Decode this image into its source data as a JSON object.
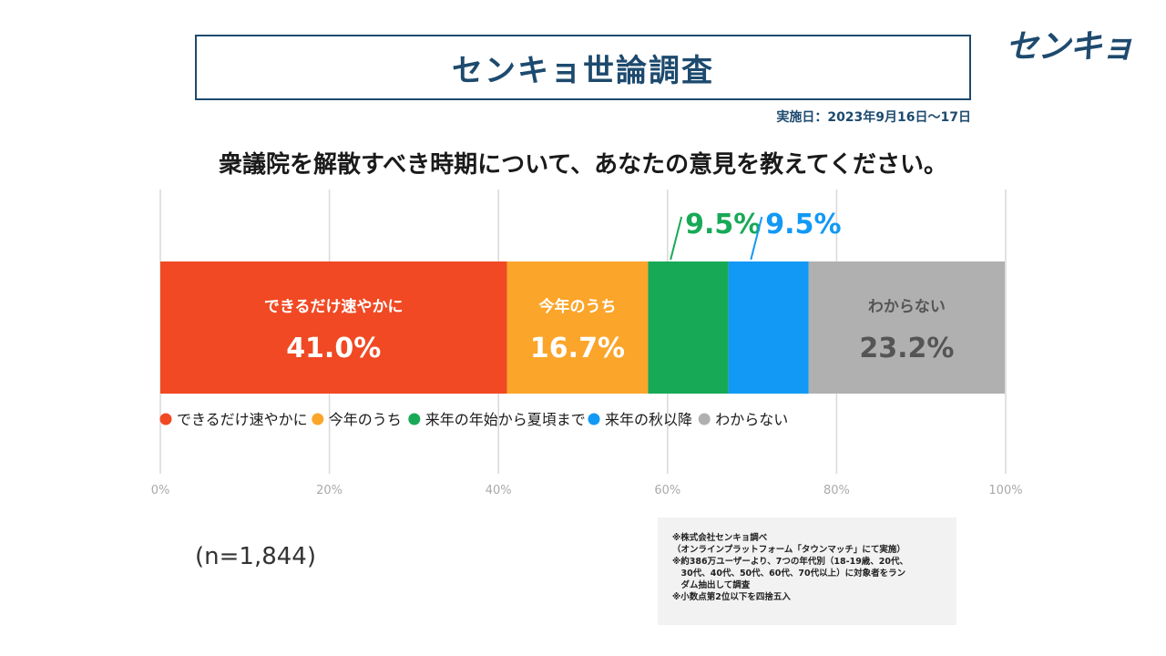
{
  "header": {
    "title": "センキョ世論調査",
    "logo_text": "センキョ",
    "date": "実施日：2023年9月16日～17日"
  },
  "question": "衆議院を解散すべき時期について、あなたの意見を教えてください。",
  "sample_size": "(n=1,844)",
  "notes": [
    "※株式会社センキョ調べ",
    "（オンラインプラットフォーム「タウンマッチ」にて実施）",
    "※約386万ユーザーより、7つの年代別（18-19歳、20代、",
    "　30代、40代、50代、60代、70代以上）に対象者をラン",
    "　ダム抽出して調査",
    "※小数点第2位以下を四捨五入"
  ],
  "colors": {
    "title": "#1d4a6e",
    "grid": "#d9d9d9"
  },
  "chart_data": {
    "type": "bar",
    "orientation": "horizontal",
    "stacked": true,
    "title": "",
    "xlabel": "",
    "ylabel": "",
    "xlim": [
      0,
      100
    ],
    "x_ticks": [
      "0%",
      "20%",
      "40%",
      "60%",
      "80%",
      "100%"
    ],
    "grid": true,
    "legend_position": "bottom",
    "series": [
      {
        "name": "できるだけ速やかに",
        "value": 41.0,
        "label": "41.0%",
        "color": "#f04923",
        "text_color": "#ffffff",
        "show_name": true
      },
      {
        "name": "今年のうち",
        "value": 16.7,
        "label": "16.7%",
        "color": "#fba52b",
        "text_color": "#ffffff",
        "show_name": true
      },
      {
        "name": "来年の年始から夏頃まで",
        "value": 9.5,
        "label": "9.5%",
        "color": "#18a957",
        "text_color": "#18a957",
        "show_name": false
      },
      {
        "name": "来年の秋以降",
        "value": 9.5,
        "label": "9.5%",
        "color": "#1299f5",
        "text_color": "#1299f5",
        "show_name": false
      },
      {
        "name": "わからない",
        "value": 23.2,
        "label": "23.2%",
        "color": "#b0b0b0",
        "text_color": "#555555",
        "show_name": true
      }
    ]
  }
}
